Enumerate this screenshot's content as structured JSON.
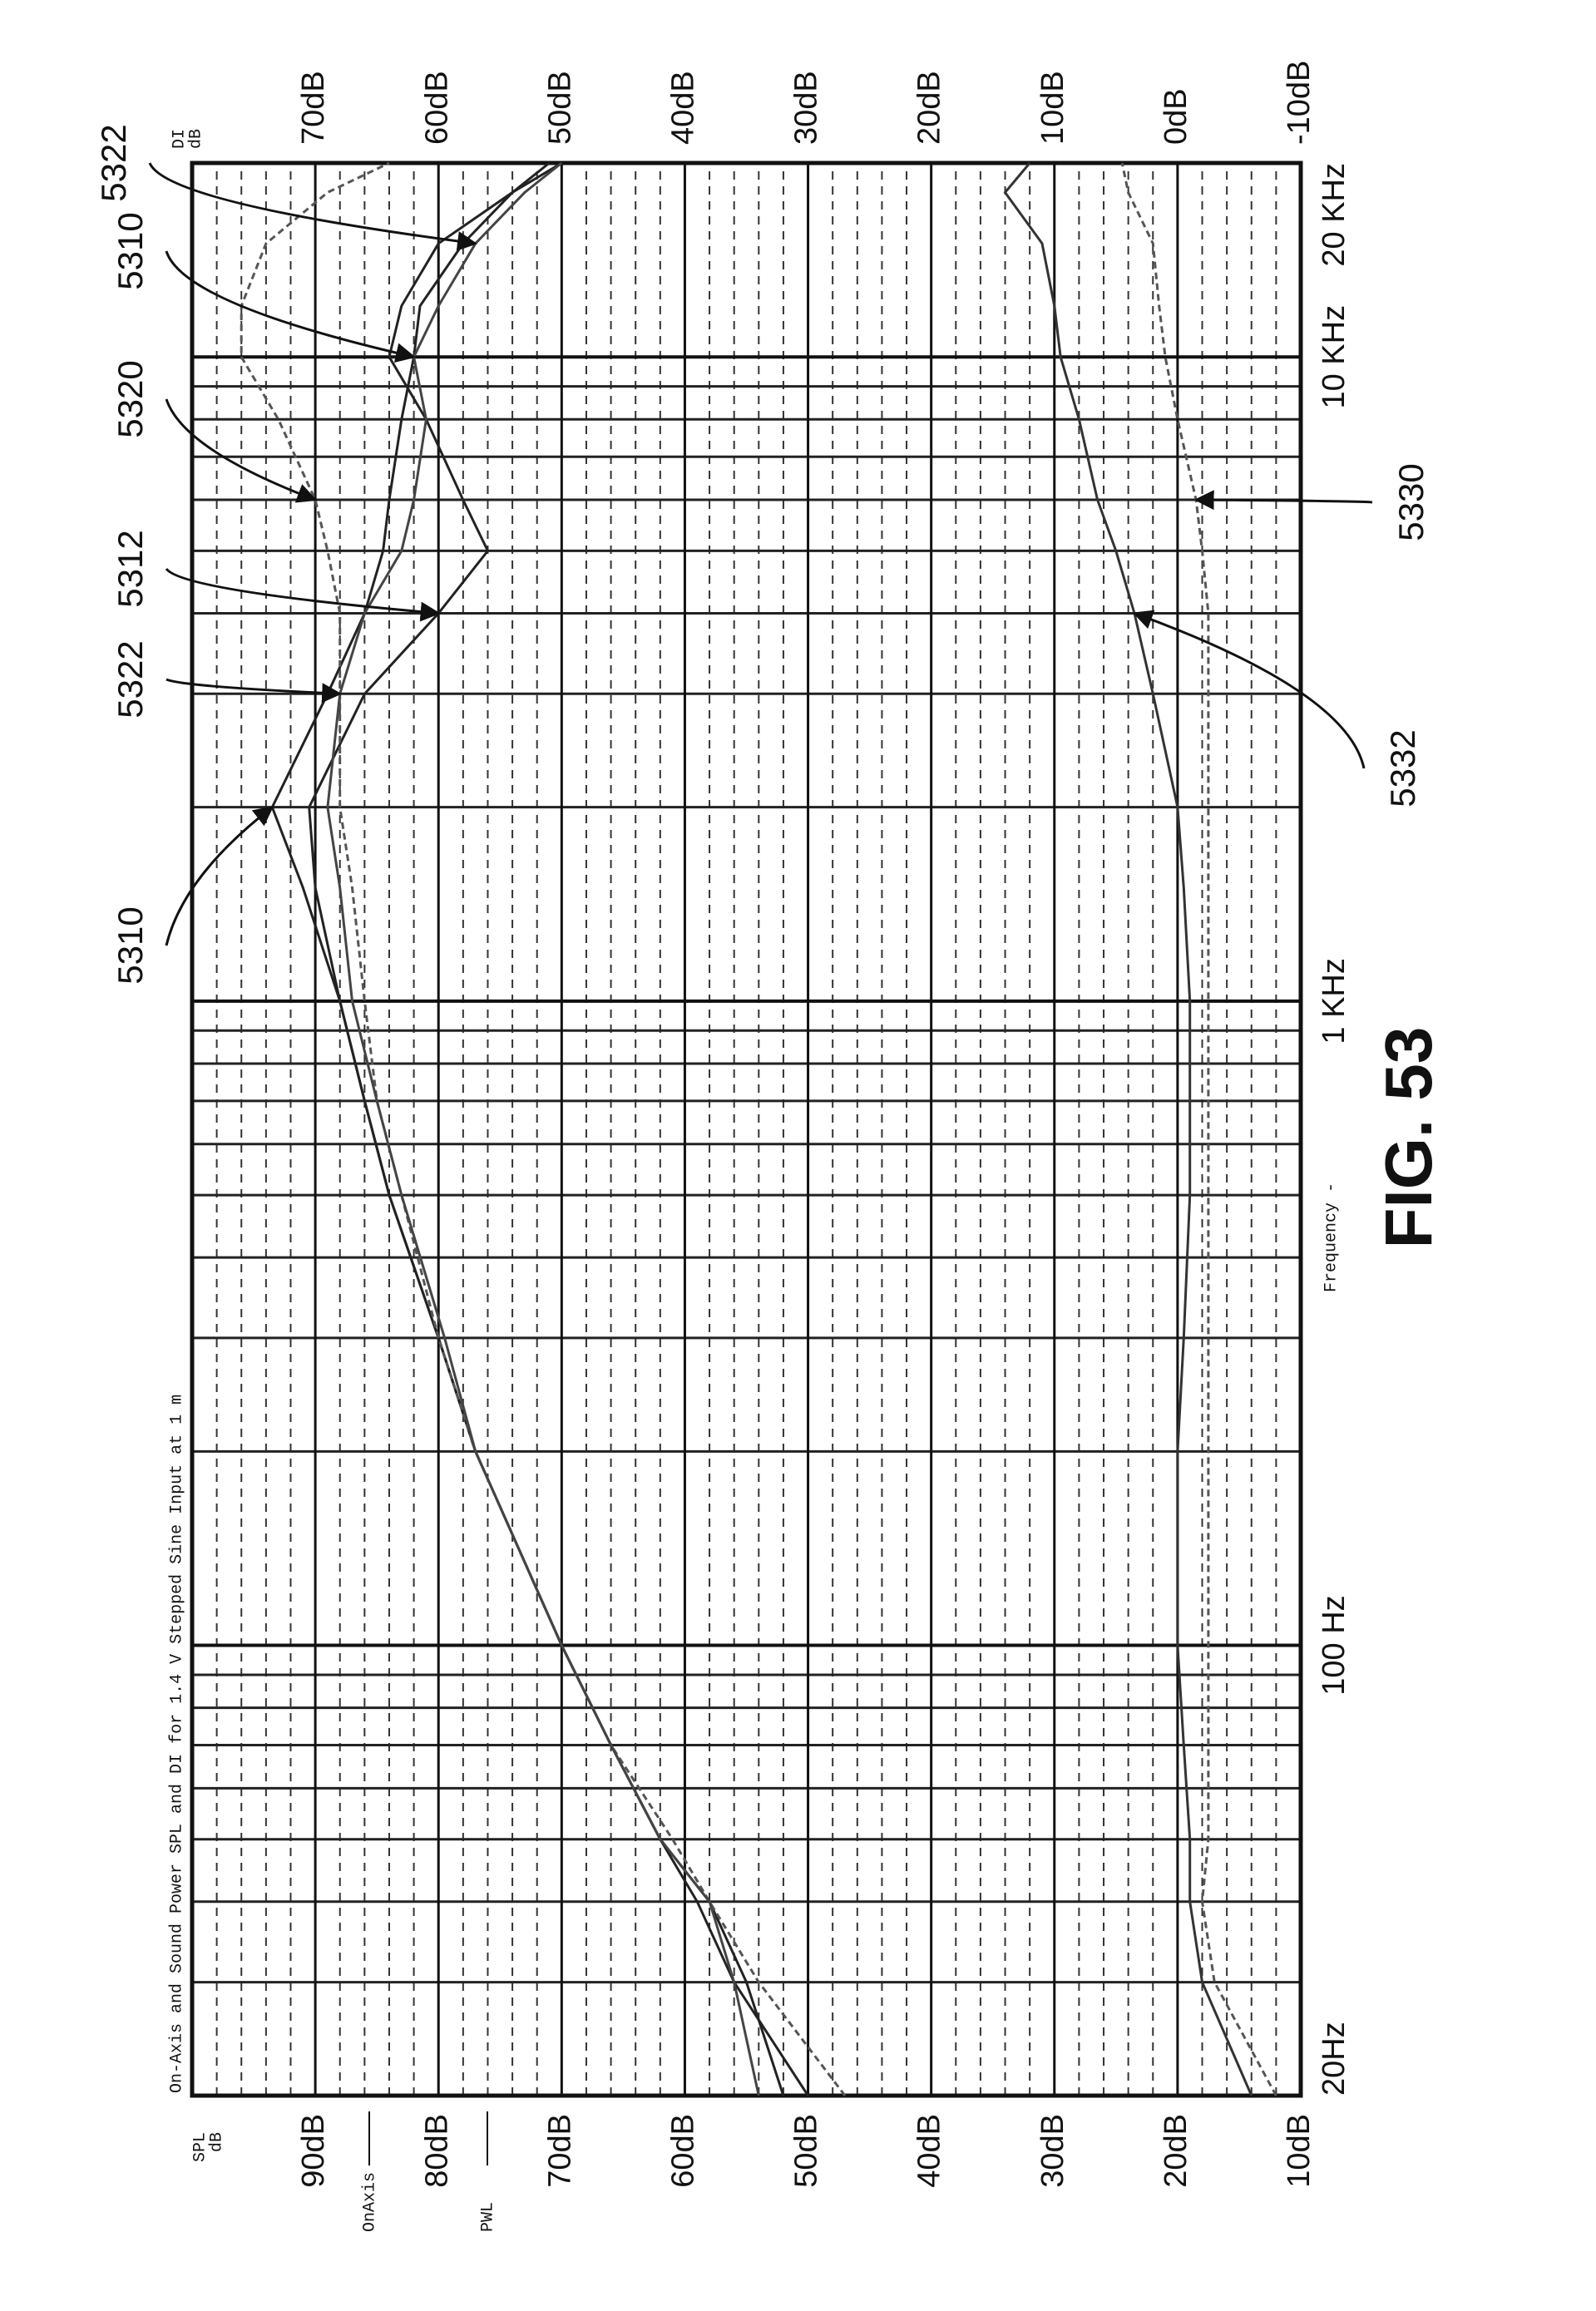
{
  "chart_data": {
    "type": "line",
    "title": "On-Axis and Sound Power SPL and DI for 1.4 V Stepped Sine Input at 1 m",
    "figure_label": "FIG. 53",
    "xlabel": "Frequency -",
    "y_label_lines": [
      "SPL",
      "dB"
    ],
    "y2_label_lines": [
      "DI",
      "dB"
    ],
    "legend": [
      "OnAxis",
      "PWL"
    ],
    "xscale": "log",
    "xlim": [
      20,
      20000
    ],
    "xticks": [
      {
        "value": 20,
        "label": "20Hz"
      },
      {
        "value": 100,
        "label": "100 Hz"
      },
      {
        "value": 1000,
        "label": "1 KHz"
      },
      {
        "value": 10000,
        "label": "10 KHz"
      },
      {
        "value": 20000,
        "label": "20 KHz"
      }
    ],
    "xminorticks": [
      30,
      40,
      50,
      60,
      70,
      80,
      90,
      200,
      300,
      400,
      500,
      600,
      700,
      800,
      900,
      2000,
      3000,
      4000,
      5000,
      6000,
      7000,
      8000,
      9000
    ],
    "ylim": [
      10,
      100
    ],
    "yticks": [
      {
        "value": 10,
        "label": "10dB"
      },
      {
        "value": 20,
        "label": "20dB"
      },
      {
        "value": 30,
        "label": "30dB"
      },
      {
        "value": 40,
        "label": "40dB"
      },
      {
        "value": 50,
        "label": "50dB"
      },
      {
        "value": 60,
        "label": "60dB"
      },
      {
        "value": 70,
        "label": "70dB"
      },
      {
        "value": 80,
        "label": "80dB"
      },
      {
        "value": 90,
        "label": "90dB"
      }
    ],
    "yminorticks": [
      12,
      14,
      16,
      18,
      22,
      24,
      26,
      28,
      32,
      34,
      36,
      38,
      42,
      44,
      46,
      48,
      52,
      54,
      56,
      58,
      62,
      64,
      66,
      68,
      72,
      74,
      76,
      78,
      82,
      84,
      86,
      88,
      92,
      94,
      96,
      98
    ],
    "y2lim": [
      -10,
      80
    ],
    "y2ticks": [
      {
        "value": -10,
        "label": "-10dB"
      },
      {
        "value": 0,
        "label": "0dB"
      },
      {
        "value": 10,
        "label": "10dB"
      },
      {
        "value": 20,
        "label": "20dB"
      },
      {
        "value": 30,
        "label": "30dB"
      },
      {
        "value": 40,
        "label": "40dB"
      },
      {
        "value": 50,
        "label": "50dB"
      },
      {
        "value": 60,
        "label": "60dB"
      },
      {
        "value": 70,
        "label": "70dB"
      }
    ],
    "grid": true,
    "x": [
      20,
      30,
      40,
      50,
      70,
      100,
      200,
      300,
      500,
      700,
      1000,
      1500,
      2000,
      3000,
      4000,
      5000,
      6000,
      8000,
      10000,
      12000,
      15000,
      18000,
      20000
    ],
    "series": [
      {
        "name": "5310",
        "color": "#222222",
        "style": "solid",
        "values": [
          52,
          55,
          58,
          62,
          66,
          70,
          77,
          80,
          84,
          86,
          88,
          91,
          93.5,
          89,
          86,
          84.5,
          84,
          83,
          82,
          81.5,
          78,
          74,
          70
        ]
      },
      {
        "name": "5312",
        "color": "#222222",
        "style": "solid",
        "values": [
          50,
          56,
          59,
          62,
          66,
          70,
          77,
          80,
          84,
          86,
          88,
          90,
          90.5,
          86,
          80,
          76,
          78,
          81,
          84,
          83,
          80,
          74,
          71
        ]
      },
      {
        "name": "5320",
        "color": "#555555",
        "style": "dashed",
        "values": [
          47,
          54,
          58,
          61,
          66,
          70,
          77,
          80,
          83,
          85,
          86,
          87,
          88,
          88,
          88,
          89,
          90,
          93,
          96,
          96,
          94,
          89,
          84
        ]
      },
      {
        "name": "5322",
        "color": "#444444",
        "style": "solid",
        "values": [
          54,
          56,
          58,
          62,
          66,
          70,
          77,
          79.5,
          83,
          85,
          87,
          88,
          89,
          88,
          86,
          83,
          82,
          81,
          82,
          80,
          77,
          73,
          70
        ]
      },
      {
        "name": "5330",
        "color": "#555555",
        "style": "dashed",
        "axis": "y2",
        "values": [
          -8,
          -3,
          -2,
          -2.5,
          -2.5,
          -2.5,
          -2.5,
          -2.5,
          -2.5,
          -2.5,
          -2.5,
          -2.5,
          -2.5,
          -2.5,
          -2.5,
          -2,
          -1.5,
          0,
          1,
          1.5,
          2,
          4,
          4.5
        ]
      },
      {
        "name": "5332",
        "color": "#333333",
        "style": "solid",
        "axis": "y2",
        "values": [
          -6,
          -2,
          -1,
          -1,
          -0.5,
          0,
          0,
          -0.5,
          -1,
          -1,
          -1,
          -0.5,
          0,
          2,
          3.5,
          5,
          6.5,
          8,
          9.5,
          10,
          11,
          14,
          12
        ]
      }
    ]
  }
}
